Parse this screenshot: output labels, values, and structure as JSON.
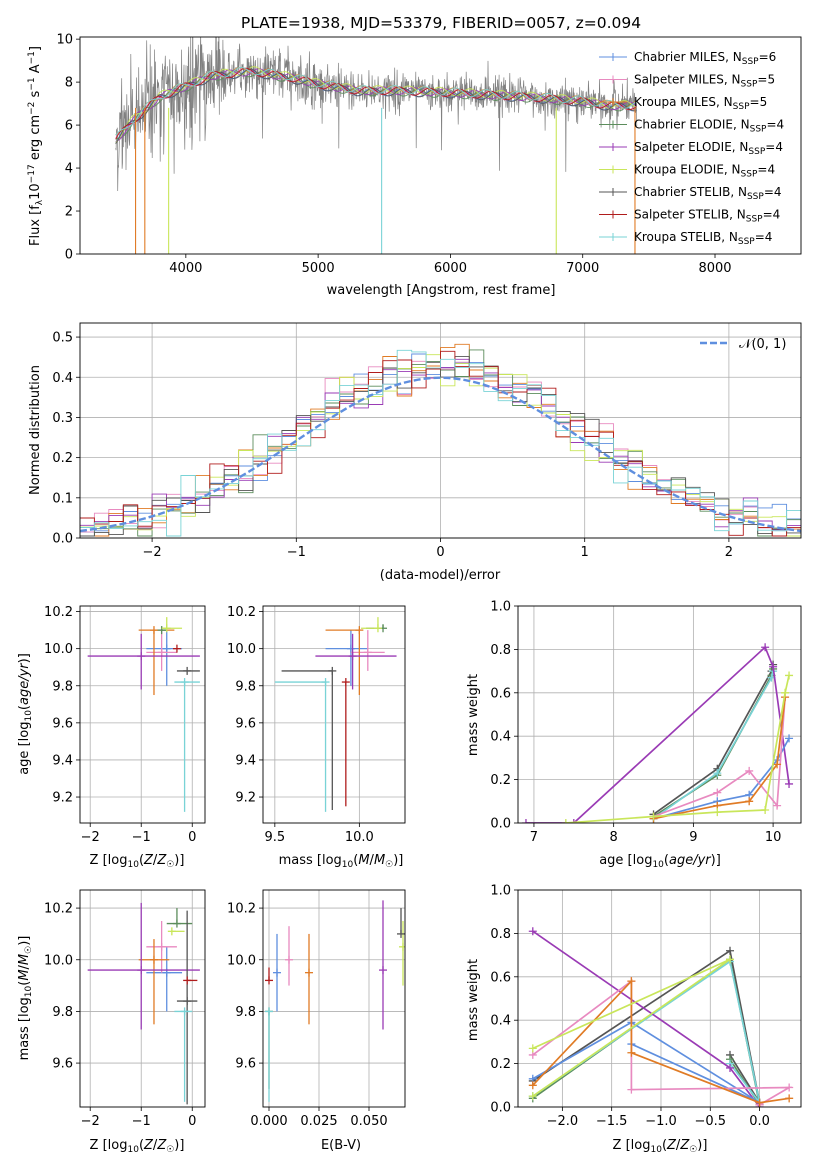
{
  "chart_data": [
    {
      "id": "spectrum",
      "type": "line",
      "title": "PLATE=1938, MJD=53379, FIBERID=0057, z=0.094",
      "xlabel": "wavelength [Angstrom, rest frame]",
      "ylabel": "Flux [f_λ 10^-17 erg cm^-2 s^-1 A^-1]",
      "xlim": [
        3200,
        8650
      ],
      "ylim": [
        0,
        10.1
      ],
      "xticks": [
        4000,
        5000,
        6000,
        7000,
        8000
      ],
      "yticks": [
        0,
        2,
        4,
        6,
        8,
        10
      ],
      "grid": false,
      "legend_position": "top-right",
      "data_color": "#808080",
      "data_x_range": [
        3470,
        7410
      ],
      "continuum_x": [
        3470,
        3600,
        3800,
        4000,
        4200,
        4500,
        4800,
        5000,
        5300,
        5600,
        6000,
        6300,
        6600,
        7000,
        7200,
        7410
      ],
      "continuum_y": [
        5.3,
        6.2,
        7.3,
        7.8,
        8.3,
        8.5,
        8.2,
        7.9,
        7.6,
        7.6,
        7.5,
        7.4,
        7.3,
        7.1,
        6.9,
        6.9
      ],
      "legend": [
        {
          "label": "Chabrier MILES, N",
          "sub": "SSP",
          "suffix": "=6",
          "color": "#5f8fdf"
        },
        {
          "label": "Salpeter MILES, N",
          "sub": "SSP",
          "suffix": "=5",
          "color": "#e88ac0"
        },
        {
          "label": "Kroupa MILES, N",
          "sub": "SSP",
          "suffix": "=5",
          "color": "#e07b25"
        },
        {
          "label": "Chabrier ELODIE, N",
          "sub": "SSP",
          "suffix": "=4",
          "color": "#5c8d5c"
        },
        {
          "label": "Salpeter ELODIE, N",
          "sub": "SSP",
          "suffix": "=4",
          "color": "#9a3bb5"
        },
        {
          "label": "Kroupa ELODIE, N",
          "sub": "SSP",
          "suffix": "=4",
          "color": "#c9e65a"
        },
        {
          "label": "Chabrier STELIB, N",
          "sub": "SSP",
          "suffix": "=4",
          "color": "#555555"
        },
        {
          "label": "Salpeter STELIB, N",
          "sub": "SSP",
          "suffix": "=4",
          "color": "#b01c1c"
        },
        {
          "label": "Kroupa STELIB, N",
          "sub": "SSP",
          "suffix": "=4",
          "color": "#79d3d6"
        }
      ]
    },
    {
      "id": "residuals",
      "type": "step",
      "xlabel": "(data-model)/error",
      "ylabel": "Normed distribution",
      "xlim": [
        -2.5,
        2.5
      ],
      "ylim": [
        0,
        0.535
      ],
      "xticks": [
        -2,
        -1,
        0,
        1,
        2
      ],
      "yticks": [
        0.0,
        0.1,
        0.2,
        0.3,
        0.4,
        0.5
      ],
      "grid": true,
      "legend_position": "top-right",
      "reference_label": "𝒩(0, 1)",
      "reference_color": "#5f8fdf",
      "bin_width": 0.1
    },
    {
      "id": "age-vs-Z",
      "type": "errorbar",
      "xlabel": "Z [log10(Z/Z☉)]",
      "ylabel": "age  [log10(age/yr)]",
      "xlim": [
        -2.2,
        0.25
      ],
      "ylim": [
        9.06,
        10.23
      ],
      "xticks": [
        -2,
        -1,
        0
      ],
      "yticks": [
        9.2,
        9.4,
        9.6,
        9.8,
        10.0,
        10.2
      ],
      "grid": true,
      "points": [
        {
          "color": "#5f8fdf",
          "x": -0.5,
          "xerr": [
            0.4,
            0.3
          ],
          "y": 10.0,
          "yerr": [
            0.2,
            0.1
          ]
        },
        {
          "color": "#e88ac0",
          "x": -0.6,
          "xerr": [
            0.3,
            0.3
          ],
          "y": 9.98,
          "yerr": [
            0.1,
            0.12
          ]
        },
        {
          "color": "#e07b25",
          "x": -0.75,
          "xerr": [
            0.3,
            0.4
          ],
          "y": 10.1,
          "yerr": [
            0.35,
            0.0
          ]
        },
        {
          "color": "#5c8d5c",
          "x": -0.6,
          "xerr": [
            0.0,
            0.1
          ],
          "y": 10.1,
          "yerr": [
            0.0,
            0.02
          ]
        },
        {
          "color": "#9a3bb5",
          "x": -1.0,
          "xerr": [
            1.05,
            1.15
          ],
          "y": 9.96,
          "yerr": [
            0.18,
            0.12
          ]
        },
        {
          "color": "#c9e65a",
          "x": -0.5,
          "xerr": [
            0.1,
            0.3
          ],
          "y": 10.11,
          "yerr": [
            0.0,
            0.06
          ]
        },
        {
          "color": "#555555",
          "x": -0.1,
          "xerr": [
            0.2,
            0.25
          ],
          "y": 9.88,
          "yerr": [
            0.0,
            0.0
          ]
        },
        {
          "color": "#b01c1c",
          "x": -0.3,
          "xerr": [
            0.0,
            0.0
          ],
          "y": 10.0,
          "yerr": [
            0.0,
            0.0
          ]
        },
        {
          "color": "#79d3d6",
          "x": -0.15,
          "xerr": [
            0.2,
            0.3
          ],
          "y": 9.82,
          "yerr": [
            0.7,
            0.0
          ]
        }
      ]
    },
    {
      "id": "age-vs-mass",
      "type": "errorbar",
      "xlabel": "mass [log10(M/M☉)]",
      "ylabel": "",
      "xlim": [
        9.43,
        10.27
      ],
      "ylim": [
        9.06,
        10.23
      ],
      "xticks": [
        9.5,
        10.0
      ],
      "yticks": [
        9.2,
        9.4,
        9.6,
        9.8,
        10.0,
        10.2
      ],
      "grid": true,
      "points": [
        {
          "color": "#5f8fdf",
          "x": 9.95,
          "xerr": [
            0.15,
            0.1
          ],
          "y": 10.0,
          "yerr": [
            0.2,
            0.1
          ]
        },
        {
          "color": "#e88ac0",
          "x": 10.05,
          "xerr": [
            0.1,
            0.1
          ],
          "y": 9.98,
          "yerr": [
            0.1,
            0.12
          ]
        },
        {
          "color": "#e07b25",
          "x": 10.0,
          "xerr": [
            0.2,
            0.0
          ],
          "y": 10.1,
          "yerr": [
            0.35,
            0.0
          ]
        },
        {
          "color": "#5c8d5c",
          "x": 10.14,
          "xerr": [
            0.1,
            0.0
          ],
          "y": 10.11,
          "yerr": [
            0.0,
            0.02
          ]
        },
        {
          "color": "#9a3bb5",
          "x": 9.96,
          "xerr": [
            0.22,
            0.26
          ],
          "y": 9.96,
          "yerr": [
            0.18,
            0.12
          ]
        },
        {
          "color": "#c9e65a",
          "x": 10.11,
          "xerr": [
            0.1,
            0.0
          ],
          "y": 10.11,
          "yerr": [
            0.0,
            0.06
          ]
        },
        {
          "color": "#555555",
          "x": 9.84,
          "xerr": [
            0.3,
            0.0
          ],
          "y": 9.88,
          "yerr": [
            0.75,
            0.0
          ]
        },
        {
          "color": "#b01c1c",
          "x": 9.92,
          "xerr": [
            0.0,
            0.0
          ],
          "y": 9.82,
          "yerr": [
            0.67,
            0.0
          ]
        },
        {
          "color": "#79d3d6",
          "x": 9.8,
          "xerr": [
            0.3,
            0.0
          ],
          "y": 9.82,
          "yerr": [
            0.7,
            0.0
          ]
        }
      ]
    },
    {
      "id": "weight-vs-age",
      "type": "line",
      "xlabel": "age  [log10(age/yr)]",
      "ylabel": "mass weight",
      "xlim": [
        6.8,
        10.35
      ],
      "ylim": [
        0,
        1.0
      ],
      "xticks": [
        7,
        8,
        9,
        10
      ],
      "yticks": [
        0.0,
        0.2,
        0.4,
        0.6,
        0.8,
        1.0
      ],
      "grid": true,
      "series": [
        {
          "color": "#555555",
          "x": [
            8.5,
            9.3,
            9.98,
            10.0
          ],
          "y": [
            0.04,
            0.25,
            0.7,
            0.73
          ]
        },
        {
          "color": "#5c8d5c",
          "x": [
            8.5,
            9.3,
            9.98,
            10.0
          ],
          "y": [
            0.03,
            0.22,
            0.68,
            0.71
          ]
        },
        {
          "color": "#79d3d6",
          "x": [
            8.5,
            9.3,
            9.98,
            10.0
          ],
          "y": [
            0.02,
            0.23,
            0.67,
            0.7
          ]
        },
        {
          "color": "#9a3bb5",
          "x": [
            6.9,
            7.5,
            9.9,
            10.0,
            10.2
          ],
          "y": [
            0.0,
            0.0,
            0.81,
            0.72,
            0.18
          ]
        },
        {
          "color": "#5f8fdf",
          "x": [
            8.5,
            9.3,
            9.7,
            10.05,
            10.2
          ],
          "y": [
            0.02,
            0.1,
            0.13,
            0.29,
            0.39
          ]
        },
        {
          "color": "#e88ac0",
          "x": [
            8.5,
            9.3,
            9.7,
            10.05,
            10.15
          ],
          "y": [
            0.03,
            0.14,
            0.24,
            0.08,
            0.58
          ]
        },
        {
          "color": "#e07b25",
          "x": [
            8.5,
            9.3,
            9.7,
            10.05,
            10.15
          ],
          "y": [
            0.02,
            0.08,
            0.1,
            0.27,
            0.58
          ]
        },
        {
          "color": "#c9e65a",
          "x": [
            7.4,
            8.5,
            9.3,
            9.9,
            10.15,
            10.2
          ],
          "y": [
            0.0,
            0.03,
            0.05,
            0.06,
            0.6,
            0.68
          ]
        }
      ]
    },
    {
      "id": "mass-vs-Z",
      "type": "errorbar",
      "xlabel": "Z [log10(Z/Z☉)]",
      "ylabel": "mass [log10(M/M☉)]",
      "xlim": [
        -2.2,
        0.25
      ],
      "ylim": [
        9.43,
        10.27
      ],
      "xticks": [
        -2,
        -1,
        0
      ],
      "yticks": [
        9.6,
        9.8,
        10.0,
        10.2
      ],
      "grid": true,
      "points": [
        {
          "color": "#5f8fdf",
          "x": -0.5,
          "xerr": [
            0.4,
            0.3
          ],
          "y": 9.95,
          "yerr": [
            0.15,
            0.1
          ]
        },
        {
          "color": "#e88ac0",
          "x": -0.6,
          "xerr": [
            0.3,
            0.3
          ],
          "y": 10.05,
          "yerr": [
            0.1,
            0.1
          ]
        },
        {
          "color": "#e07b25",
          "x": -0.75,
          "xerr": [
            0.3,
            0.3
          ],
          "y": 10.0,
          "yerr": [
            0.25,
            0.08
          ]
        },
        {
          "color": "#5c8d5c",
          "x": -0.3,
          "xerr": [
            0.2,
            0.3
          ],
          "y": 10.14,
          "yerr": [
            0.0,
            0.06
          ]
        },
        {
          "color": "#9a3bb5",
          "x": -1.0,
          "xerr": [
            1.05,
            1.15
          ],
          "y": 9.96,
          "yerr": [
            0.23,
            0.26
          ]
        },
        {
          "color": "#c9e65a",
          "x": -0.4,
          "xerr": [
            0.0,
            0.25
          ],
          "y": 10.11,
          "yerr": [
            0.0,
            0.0
          ]
        },
        {
          "color": "#555555",
          "x": -0.1,
          "xerr": [
            0.2,
            0.2
          ],
          "y": 9.84,
          "yerr": [
            0.4,
            0.35
          ]
        },
        {
          "color": "#b01c1c",
          "x": -0.1,
          "xerr": [
            0.0,
            0.2
          ],
          "y": 9.92,
          "yerr": [
            0.0,
            0.0
          ]
        },
        {
          "color": "#79d3d6",
          "x": -0.15,
          "xerr": [
            0.2,
            0.15
          ],
          "y": 9.8,
          "yerr": [
            0.35,
            0.0
          ]
        }
      ]
    },
    {
      "id": "mass-vs-ebv",
      "type": "errorbar",
      "xlabel": "E(B-V)",
      "ylabel": "",
      "xlim": [
        -0.003,
        0.068
      ],
      "ylim": [
        9.43,
        10.27
      ],
      "xticks": [
        0.0,
        0.025,
        0.05
      ],
      "yticks": [
        9.6,
        9.8,
        10.0,
        10.2
      ],
      "grid": true,
      "points": [
        {
          "color": "#5f8fdf",
          "x": 0.004,
          "y": 9.95,
          "yerr": [
            0.15,
            0.15
          ]
        },
        {
          "color": "#e88ac0",
          "x": 0.01,
          "y": 10.0,
          "yerr": [
            0.1,
            0.13
          ]
        },
        {
          "color": "#e07b25",
          "x": 0.02,
          "y": 9.95,
          "yerr": [
            0.2,
            0.15
          ]
        },
        {
          "color": "#5c8d5c",
          "x": 0.0,
          "y": 9.8,
          "yerr": [
            0.3,
            0.0
          ]
        },
        {
          "color": "#9a3bb5",
          "x": 0.057,
          "y": 9.96,
          "yerr": [
            0.23,
            0.27
          ]
        },
        {
          "color": "#c9e65a",
          "x": 0.067,
          "y": 10.05,
          "yerr": [
            0.15,
            0.1
          ]
        },
        {
          "color": "#555555",
          "x": 0.066,
          "y": 10.1,
          "yerr": [
            0.0,
            0.1
          ]
        },
        {
          "color": "#b01c1c",
          "x": 0.0,
          "y": 9.92,
          "yerr": [
            0.0,
            0.05
          ]
        },
        {
          "color": "#79d3d6",
          "x": 0.0,
          "y": 9.8,
          "yerr": [
            0.35,
            0.0
          ]
        }
      ]
    },
    {
      "id": "weight-vs-Z",
      "type": "line",
      "xlabel": "Z [log10(Z/Z☉)]",
      "ylabel": "mass weight",
      "xlim": [
        -2.45,
        0.42
      ],
      "ylim": [
        0,
        1.0
      ],
      "xticks": [
        -2.0,
        -1.5,
        -1.0,
        -0.5,
        0.0
      ],
      "yticks": [
        0.0,
        0.2,
        0.4,
        0.6,
        0.8,
        1.0
      ],
      "grid": true,
      "series": [
        {
          "color": "#555555",
          "x": [
            -2.3,
            -0.3,
            0.0,
            -0.3
          ],
          "y": [
            0.12,
            0.72,
            0.02,
            0.24
          ]
        },
        {
          "color": "#5c8d5c",
          "x": [
            -2.3,
            -0.3,
            0.0,
            -0.3
          ],
          "y": [
            0.04,
            0.68,
            0.01,
            0.22
          ]
        },
        {
          "color": "#79d3d6",
          "x": [
            -2.3,
            -0.3,
            0.0,
            -0.3
          ],
          "y": [
            0.05,
            0.67,
            0.02,
            0.2
          ]
        },
        {
          "color": "#9a3bb5",
          "x": [
            -2.3,
            -0.3,
            0.0
          ],
          "y": [
            0.81,
            0.18,
            0.0
          ]
        },
        {
          "color": "#5f8fdf",
          "x": [
            -2.3,
            -1.3,
            0.0,
            -1.3
          ],
          "y": [
            0.13,
            0.39,
            0.02,
            0.29
          ]
        },
        {
          "color": "#e88ac0",
          "x": [
            -2.3,
            -1.3,
            -1.3,
            0.3,
            0.0
          ],
          "y": [
            0.24,
            0.58,
            0.08,
            0.09,
            0.01
          ]
        },
        {
          "color": "#e07b25",
          "x": [
            -2.3,
            -1.3,
            -1.3,
            0.0,
            0.3
          ],
          "y": [
            0.1,
            0.58,
            0.25,
            0.02,
            0.04
          ]
        },
        {
          "color": "#c9e65a",
          "x": [
            -2.3,
            -0.3,
            -2.3
          ],
          "y": [
            0.05,
            0.68,
            0.27
          ]
        }
      ]
    }
  ]
}
